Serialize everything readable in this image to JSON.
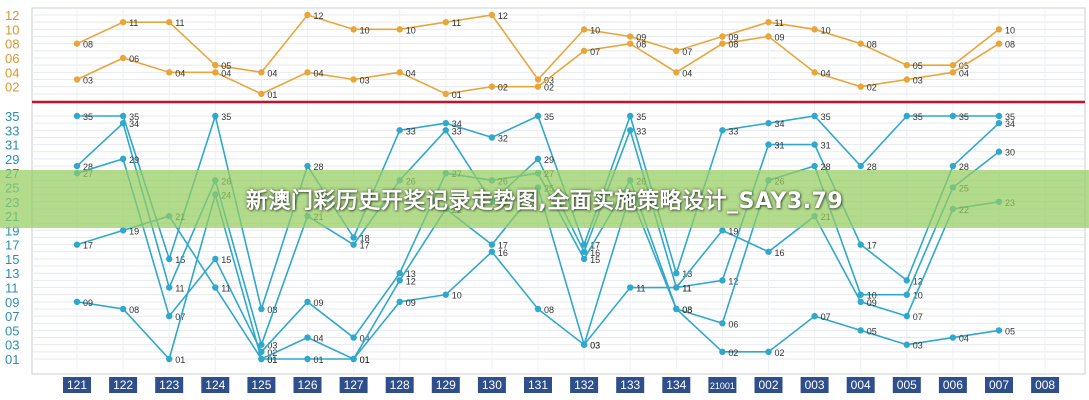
{
  "watermark": "新澳门彩历史开奖记录走势图,全面实施策略设计_SAY3.79",
  "chart_data": [
    {
      "type": "line",
      "panel": "top",
      "yticks": [
        "12",
        "10",
        "08",
        "06",
        "04",
        "02"
      ],
      "ylim": [
        0,
        12.5
      ],
      "categories": [
        "121",
        "122",
        "123",
        "124",
        "125",
        "126",
        "127",
        "128",
        "129",
        "130",
        "131",
        "132",
        "133",
        "134",
        "21001",
        "002",
        "003",
        "004",
        "005",
        "006",
        "007",
        "008"
      ],
      "series": [
        {
          "color": "#E8A63A",
          "values": [
            8,
            11,
            11,
            5,
            4,
            12,
            10,
            10,
            11,
            12,
            3,
            10,
            9,
            7,
            9,
            11,
            10,
            8,
            5,
            5,
            10,
            null
          ],
          "labels": [
            "08",
            "11",
            "11",
            "05",
            "04",
            "12",
            "10",
            "10",
            "11",
            "12",
            "03",
            "10",
            "09",
            "07",
            "09",
            "11",
            "10",
            "08",
            "05",
            "05",
            "10",
            null
          ]
        },
        {
          "color": "#E8A63A",
          "values": [
            3,
            6,
            4,
            4,
            1,
            4,
            3,
            4,
            1,
            2,
            2,
            7,
            8,
            4,
            8,
            9,
            4,
            2,
            3,
            4,
            8,
            null
          ],
          "labels": [
            "03",
            "06",
            "04",
            "04",
            "01",
            "04",
            "03",
            "04",
            "01",
            "02",
            "02",
            "07",
            "08",
            "04",
            "08",
            "09",
            "04",
            "02",
            "03",
            "04",
            "08",
            null
          ]
        }
      ]
    },
    {
      "type": "line",
      "panel": "bottom",
      "yticks": [
        "35",
        "33",
        "31",
        "29",
        "27",
        "25",
        "23",
        "21",
        "19",
        "17",
        "15",
        "13",
        "11",
        "09",
        "07",
        "05",
        "03",
        "01"
      ],
      "ylim": [
        0,
        36
      ],
      "categories": [
        "121",
        "122",
        "123",
        "124",
        "125",
        "126",
        "127",
        "128",
        "129",
        "130",
        "131",
        "132",
        "133",
        "134",
        "21001",
        "002",
        "003",
        "004",
        "005",
        "006",
        "007",
        "008"
      ],
      "series": [
        {
          "color": "#2FA8CC",
          "values": [
            35,
            35,
            15,
            35,
            8,
            28,
            18,
            33,
            34,
            32,
            35,
            17,
            35,
            13,
            33,
            34,
            35,
            28,
            35,
            35,
            35,
            null
          ],
          "labels": [
            "35",
            "35",
            "15",
            "35",
            "08",
            "28",
            "18",
            "33",
            "34",
            "32",
            "35",
            "17",
            "35",
            "13",
            "33",
            "34",
            "35",
            "28",
            "35",
            "35",
            "35",
            null
          ]
        },
        {
          "color": "#2FA8CC",
          "values": [
            28,
            34,
            11,
            26,
            3,
            21,
            17,
            26,
            33,
            23,
            29,
            16,
            33,
            11,
            12,
            31,
            31,
            17,
            12,
            28,
            34,
            null
          ],
          "labels": [
            "28",
            "34",
            "11",
            "26",
            "03",
            "21",
            "17",
            "26",
            "33",
            "23",
            "29",
            "16",
            "33",
            "11",
            "12",
            "31",
            "31",
            "17",
            "12",
            "28",
            "34",
            null
          ]
        },
        {
          "color": "#2FA8CC",
          "values": [
            27,
            29,
            7,
            15,
            2,
            9,
            4,
            13,
            27,
            26,
            27,
            15,
            26,
            8,
            6,
            26,
            28,
            10,
            10,
            25,
            30,
            null
          ],
          "labels": [
            "27",
            "29",
            "07",
            "15",
            "02",
            "09",
            "04",
            "13",
            "27",
            "26",
            "27",
            "15",
            "26",
            "08",
            "06",
            "26",
            "28",
            "10",
            "10",
            "25",
            "30",
            null
          ]
        },
        {
          "color": "#2FA8CC",
          "values": [
            17,
            19,
            21,
            11,
            1,
            4,
            1,
            12,
            22,
            17,
            25,
            3,
            11,
            11,
            19,
            16,
            21,
            9,
            7,
            22,
            23,
            null
          ],
          "labels": [
            "17",
            "19",
            "21",
            "11",
            "01",
            "04",
            "01",
            "12",
            "22",
            "17",
            "25",
            "03",
            "11",
            "11",
            "19",
            "16",
            "21",
            "09",
            "07",
            "22",
            "23",
            null
          ]
        },
        {
          "color": "#2FA8CC",
          "values": [
            9,
            8,
            1,
            24,
            1,
            1,
            1,
            9,
            10,
            16,
            8,
            3,
            24,
            8,
            2,
            2,
            7,
            5,
            3,
            4,
            5,
            null
          ],
          "labels": [
            "09",
            "08",
            "01",
            "24",
            "01",
            "01",
            "01",
            "09",
            "10",
            "16",
            "08",
            "03",
            "24",
            "08",
            "02",
            "02",
            "07",
            "05",
            "03",
            "04",
            "05",
            null
          ]
        }
      ]
    }
  ]
}
